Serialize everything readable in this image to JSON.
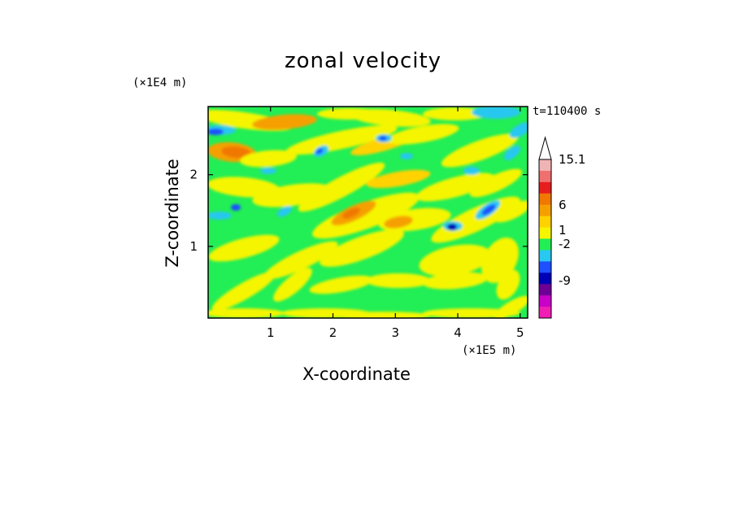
{
  "chart_data": {
    "type": "heatmap",
    "title": "zonal velocity",
    "xlabel": "X-coordinate",
    "ylabel": "Z-coordinate",
    "x_unit": "(×1E5 m)",
    "y_unit": "(×1E4 m)",
    "time_label": "t=110400 s",
    "x_ticks": [
      "1",
      "2",
      "3",
      "4",
      "5"
    ],
    "y_ticks": [
      "1",
      "2"
    ],
    "xlim": [
      0,
      5.12
    ],
    "ylim": [
      0,
      2.95
    ],
    "colorbar": {
      "labels": [
        "15.1",
        "6",
        "1",
        "-2",
        "-9"
      ],
      "colors": [
        "#f0b4b4",
        "#f07070",
        "#e61e1e",
        "#f07800",
        "#f5a000",
        "#ffd200",
        "#f5f500",
        "#22ee55",
        "#28c8f0",
        "#1e50ff",
        "#0000b4",
        "#6e0096",
        "#c800c8",
        "#f01eb4"
      ],
      "extend": "max"
    }
  }
}
